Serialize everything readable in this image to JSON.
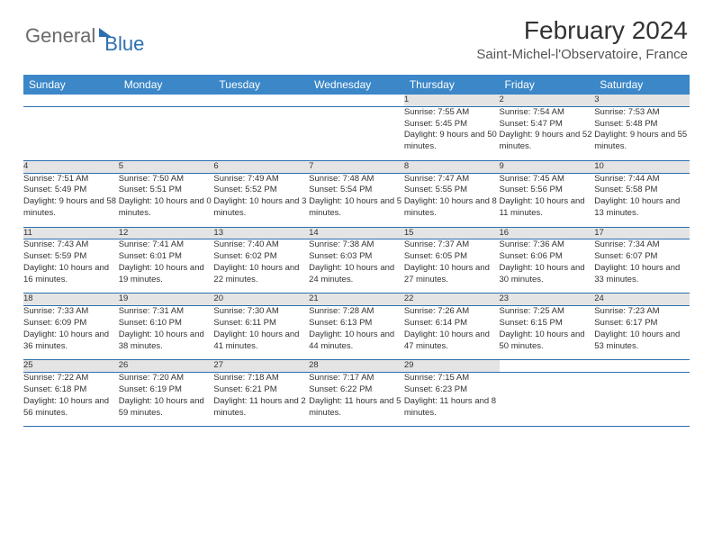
{
  "logo": {
    "general": "General",
    "blue": "Blue"
  },
  "title": "February 2024",
  "location": "Saint-Michel-l'Observatoire, France",
  "colors": {
    "header_bg": "#3b87c8",
    "daynum_bg": "#e4e4e4",
    "border": "#2c6fb0",
    "logo_gray": "#6a6a6a",
    "logo_blue": "#2c6fb0"
  },
  "dayNames": [
    "Sunday",
    "Monday",
    "Tuesday",
    "Wednesday",
    "Thursday",
    "Friday",
    "Saturday"
  ],
  "weeks": [
    [
      null,
      null,
      null,
      null,
      {
        "n": "1",
        "sunrise": "7:55 AM",
        "sunset": "5:45 PM",
        "daylight": "9 hours and 50 minutes."
      },
      {
        "n": "2",
        "sunrise": "7:54 AM",
        "sunset": "5:47 PM",
        "daylight": "9 hours and 52 minutes."
      },
      {
        "n": "3",
        "sunrise": "7:53 AM",
        "sunset": "5:48 PM",
        "daylight": "9 hours and 55 minutes."
      }
    ],
    [
      {
        "n": "4",
        "sunrise": "7:51 AM",
        "sunset": "5:49 PM",
        "daylight": "9 hours and 58 minutes."
      },
      {
        "n": "5",
        "sunrise": "7:50 AM",
        "sunset": "5:51 PM",
        "daylight": "10 hours and 0 minutes."
      },
      {
        "n": "6",
        "sunrise": "7:49 AM",
        "sunset": "5:52 PM",
        "daylight": "10 hours and 3 minutes."
      },
      {
        "n": "7",
        "sunrise": "7:48 AM",
        "sunset": "5:54 PM",
        "daylight": "10 hours and 5 minutes."
      },
      {
        "n": "8",
        "sunrise": "7:47 AM",
        "sunset": "5:55 PM",
        "daylight": "10 hours and 8 minutes."
      },
      {
        "n": "9",
        "sunrise": "7:45 AM",
        "sunset": "5:56 PM",
        "daylight": "10 hours and 11 minutes."
      },
      {
        "n": "10",
        "sunrise": "7:44 AM",
        "sunset": "5:58 PM",
        "daylight": "10 hours and 13 minutes."
      }
    ],
    [
      {
        "n": "11",
        "sunrise": "7:43 AM",
        "sunset": "5:59 PM",
        "daylight": "10 hours and 16 minutes."
      },
      {
        "n": "12",
        "sunrise": "7:41 AM",
        "sunset": "6:01 PM",
        "daylight": "10 hours and 19 minutes."
      },
      {
        "n": "13",
        "sunrise": "7:40 AM",
        "sunset": "6:02 PM",
        "daylight": "10 hours and 22 minutes."
      },
      {
        "n": "14",
        "sunrise": "7:38 AM",
        "sunset": "6:03 PM",
        "daylight": "10 hours and 24 minutes."
      },
      {
        "n": "15",
        "sunrise": "7:37 AM",
        "sunset": "6:05 PM",
        "daylight": "10 hours and 27 minutes."
      },
      {
        "n": "16",
        "sunrise": "7:36 AM",
        "sunset": "6:06 PM",
        "daylight": "10 hours and 30 minutes."
      },
      {
        "n": "17",
        "sunrise": "7:34 AM",
        "sunset": "6:07 PM",
        "daylight": "10 hours and 33 minutes."
      }
    ],
    [
      {
        "n": "18",
        "sunrise": "7:33 AM",
        "sunset": "6:09 PM",
        "daylight": "10 hours and 36 minutes."
      },
      {
        "n": "19",
        "sunrise": "7:31 AM",
        "sunset": "6:10 PM",
        "daylight": "10 hours and 38 minutes."
      },
      {
        "n": "20",
        "sunrise": "7:30 AM",
        "sunset": "6:11 PM",
        "daylight": "10 hours and 41 minutes."
      },
      {
        "n": "21",
        "sunrise": "7:28 AM",
        "sunset": "6:13 PM",
        "daylight": "10 hours and 44 minutes."
      },
      {
        "n": "22",
        "sunrise": "7:26 AM",
        "sunset": "6:14 PM",
        "daylight": "10 hours and 47 minutes."
      },
      {
        "n": "23",
        "sunrise": "7:25 AM",
        "sunset": "6:15 PM",
        "daylight": "10 hours and 50 minutes."
      },
      {
        "n": "24",
        "sunrise": "7:23 AM",
        "sunset": "6:17 PM",
        "daylight": "10 hours and 53 minutes."
      }
    ],
    [
      {
        "n": "25",
        "sunrise": "7:22 AM",
        "sunset": "6:18 PM",
        "daylight": "10 hours and 56 minutes."
      },
      {
        "n": "26",
        "sunrise": "7:20 AM",
        "sunset": "6:19 PM",
        "daylight": "10 hours and 59 minutes."
      },
      {
        "n": "27",
        "sunrise": "7:18 AM",
        "sunset": "6:21 PM",
        "daylight": "11 hours and 2 minutes."
      },
      {
        "n": "28",
        "sunrise": "7:17 AM",
        "sunset": "6:22 PM",
        "daylight": "11 hours and 5 minutes."
      },
      {
        "n": "29",
        "sunrise": "7:15 AM",
        "sunset": "6:23 PM",
        "daylight": "11 hours and 8 minutes."
      },
      null,
      null
    ]
  ],
  "labels": {
    "sunrise": "Sunrise: ",
    "sunset": "Sunset: ",
    "daylight": "Daylight: "
  }
}
